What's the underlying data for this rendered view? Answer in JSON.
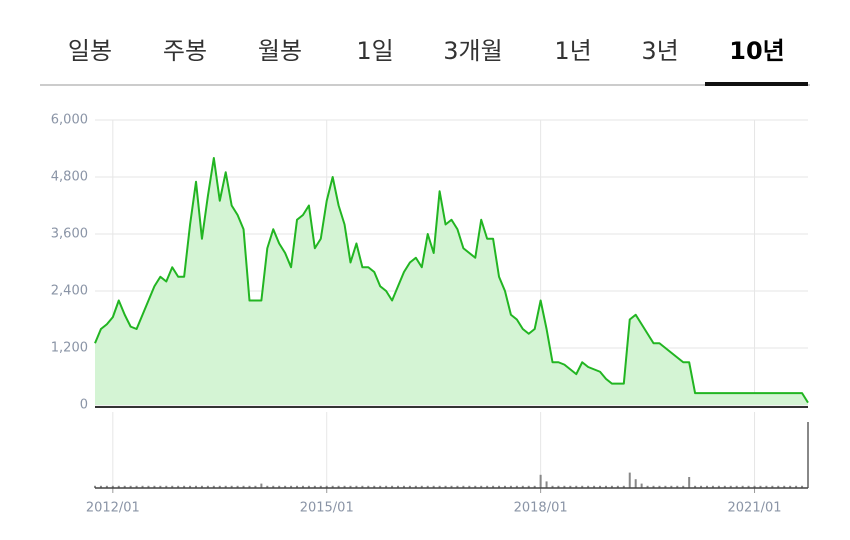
{
  "tabs": [
    "일봉",
    "주봉",
    "월봉",
    "1일",
    "3개월",
    "1년",
    "3년",
    "10년"
  ],
  "selected_tab": 7,
  "chart_data": {
    "type": "area",
    "x": [
      "2011/10",
      "2011/11",
      "2011/12",
      "2012/01",
      "2012/02",
      "2012/03",
      "2012/04",
      "2012/05",
      "2012/06",
      "2012/07",
      "2012/08",
      "2012/09",
      "2012/10",
      "2012/11",
      "2012/12",
      "2013/01",
      "2013/02",
      "2013/03",
      "2013/04",
      "2013/05",
      "2013/06",
      "2013/07",
      "2013/08",
      "2013/09",
      "2013/10",
      "2013/11",
      "2013/12",
      "2014/01",
      "2014/02",
      "2014/03",
      "2014/04",
      "2014/05",
      "2014/06",
      "2014/07",
      "2014/08",
      "2014/09",
      "2014/10",
      "2014/11",
      "2014/12",
      "2015/01",
      "2015/02",
      "2015/03",
      "2015/04",
      "2015/05",
      "2015/06",
      "2015/07",
      "2015/08",
      "2015/09",
      "2015/10",
      "2015/11",
      "2015/12",
      "2016/01",
      "2016/02",
      "2016/03",
      "2016/04",
      "2016/05",
      "2016/06",
      "2016/07",
      "2016/08",
      "2016/09",
      "2016/10",
      "2016/11",
      "2016/12",
      "2017/01",
      "2017/02",
      "2017/03",
      "2017/04",
      "2017/05",
      "2017/06",
      "2017/07",
      "2017/08",
      "2017/09",
      "2017/10",
      "2017/11",
      "2017/12",
      "2018/01",
      "2018/02",
      "2018/03",
      "2018/04",
      "2018/05",
      "2018/06",
      "2018/07",
      "2018/08",
      "2018/09",
      "2018/10",
      "2018/11",
      "2018/12",
      "2019/01",
      "2019/02",
      "2019/03",
      "2019/04",
      "2019/05",
      "2019/06",
      "2019/07",
      "2019/08",
      "2019/09",
      "2019/10",
      "2019/11",
      "2019/12",
      "2020/01",
      "2020/02",
      "2020/03",
      "2020/04",
      "2020/05",
      "2020/06",
      "2020/07",
      "2020/08",
      "2020/09",
      "2020/10",
      "2020/11",
      "2020/12",
      "2021/01",
      "2021/02",
      "2021/03",
      "2021/04",
      "2021/05",
      "2021/06",
      "2021/07",
      "2021/08",
      "2021/09",
      "2021/10"
    ],
    "series": [
      {
        "name": "price",
        "color": "#22b522",
        "fill": "#d4f4d4",
        "values": [
          1300,
          1600,
          1700,
          1850,
          2200,
          1900,
          1650,
          1600,
          1900,
          2200,
          2500,
          2700,
          2600,
          2900,
          2700,
          2700,
          3800,
          4700,
          3500,
          4400,
          5200,
          4300,
          4900,
          4200,
          4000,
          3700,
          2200,
          2200,
          2200,
          3300,
          3700,
          3400,
          3200,
          2900,
          3900,
          4000,
          4200,
          3300,
          3500,
          4300,
          4800,
          4200,
          3800,
          3000,
          3400,
          2900,
          2900,
          2800,
          2500,
          2400,
          2200,
          2500,
          2800,
          3000,
          3100,
          2900,
          3600,
          3200,
          4500,
          3800,
          3900,
          3700,
          3300,
          3200,
          3100,
          3900,
          3500,
          3500,
          2700,
          2400,
          1900,
          1800,
          1600,
          1500,
          1600,
          2200,
          1600,
          900,
          900,
          850,
          750,
          650,
          900,
          800,
          750,
          700,
          550,
          450,
          450,
          450,
          1800,
          1900,
          1700,
          1500,
          1300,
          1300,
          1200,
          1100,
          1000,
          900,
          900,
          250,
          250,
          250,
          250,
          250,
          250,
          250,
          250,
          250,
          250,
          250,
          250,
          250,
          250,
          250,
          250,
          250,
          250,
          250,
          50
        ]
      },
      {
        "name": "volume",
        "color": "#888888",
        "values": [
          1,
          1,
          1,
          1,
          1,
          1,
          1,
          1,
          1,
          1,
          1,
          1,
          1,
          1,
          1,
          1,
          1,
          1,
          1,
          1,
          1,
          1,
          1,
          1,
          1,
          1,
          1,
          1,
          2,
          1,
          1,
          1,
          1,
          1,
          1,
          1,
          1,
          1,
          1,
          1,
          1,
          1,
          1,
          1,
          1,
          1,
          1,
          1,
          1,
          1,
          1,
          1,
          1,
          1,
          1,
          1,
          1,
          1,
          1,
          1,
          1,
          1,
          1,
          1,
          1,
          1,
          1,
          1,
          1,
          1,
          1,
          1,
          1,
          1,
          1,
          6,
          3,
          1,
          1,
          1,
          1,
          1,
          1,
          1,
          1,
          1,
          1,
          1,
          1,
          1,
          7,
          4,
          2,
          1,
          1,
          1,
          1,
          1,
          1,
          1,
          5,
          1,
          1,
          1,
          1,
          1,
          1,
          1,
          1,
          1,
          1,
          1,
          1,
          1,
          1,
          1,
          1,
          1,
          1,
          1,
          30
        ]
      }
    ],
    "ylim": [
      0,
      6000
    ],
    "yticks": [
      0,
      {
        "value": 1200,
        "label": "1,200"
      },
      {
        "value": 2400,
        "label": "2,400"
      },
      {
        "value": 3600,
        "label": "3,600"
      },
      {
        "value": 4800,
        "label": "4,800"
      },
      {
        "value": 6000,
        "label": "6,000"
      }
    ],
    "xticks": [
      "2012/01",
      "2015/01",
      "2018/01",
      "2021/01"
    ],
    "grid": true
  }
}
